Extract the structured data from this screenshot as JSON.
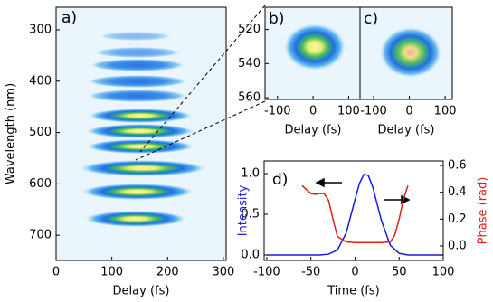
{
  "chart_data": [
    {
      "type": "heatmap",
      "panel_label": "a)",
      "xlabel": "Delay (fs)",
      "ylabel": "Wavelength (nm)",
      "xlim": [
        0,
        305
      ],
      "ylim": [
        256,
        749
      ],
      "y_inverted": true,
      "xticks": [
        0,
        100,
        200,
        300
      ],
      "yticks": [
        300,
        400,
        500,
        600,
        700
      ]
    },
    {
      "type": "heatmap",
      "panel_label": "b)",
      "xlabel": "Delay (fs)",
      "xlim": [
        -135,
        132
      ],
      "ylim": [
        507,
        561
      ],
      "y_inverted": true,
      "xticks": [
        -100,
        0,
        100
      ],
      "yticks": [
        520,
        540,
        560
      ]
    },
    {
      "type": "heatmap",
      "panel_label": "c)",
      "xlabel": "Delay (fs)",
      "xlim": [
        -138,
        120
      ],
      "ylim": [
        507,
        561
      ],
      "y_inverted": true,
      "xticks": [
        -100,
        0,
        100
      ]
    },
    {
      "type": "line",
      "panel_label": "d)",
      "xlabel": "Time (fs)",
      "ylabel": "Intensity",
      "y2label": "Phase (rad)",
      "ylabel_color": "#1a1ad6",
      "y2label_color": "#e0201a",
      "xlim": [
        -103,
        100
      ],
      "ylim": [
        -0.067,
        1.156
      ],
      "y2lim": [
        -0.108,
        0.634
      ],
      "xticks": [
        -100,
        -50,
        0,
        50,
        100
      ],
      "yticks": [
        {
          "value": 0,
          "label": "0.0"
        },
        {
          "value": 0.5,
          "label": "0.5"
        },
        {
          "value": 1,
          "label": "1.0"
        }
      ],
      "y2ticks": [
        {
          "value": 0,
          "label": "0.0"
        },
        {
          "value": 0.2,
          "label": "0.2"
        },
        {
          "value": 0.4,
          "label": "0.4"
        },
        {
          "value": 0.6,
          "label": "0.6"
        }
      ],
      "series": [
        {
          "color": "#1a1ad6",
          "x": [
            -100,
            -60,
            -40,
            -30,
            -20,
            -10,
            0,
            5,
            10,
            15,
            20,
            30,
            40,
            50,
            60,
            100
          ],
          "values": [
            0,
            0,
            0,
            0.01,
            0.06,
            0.27,
            0.68,
            0.88,
            0.99,
            0.98,
            0.84,
            0.42,
            0.12,
            0.02,
            0,
            0
          ]
        },
        {
          "color": "#e0201a",
          "axis": "y2",
          "x": [
            -60,
            -55,
            -50,
            -45,
            -40,
            -35,
            -30,
            -25,
            -20,
            -10,
            0,
            10,
            20,
            30,
            40,
            45,
            50,
            55,
            60
          ],
          "values": [
            0.45,
            0.42,
            0.39,
            0.385,
            0.39,
            0.39,
            0.34,
            0.2,
            0.07,
            0.03,
            0.025,
            0.025,
            0.025,
            0.025,
            0.03,
            0.08,
            0.2,
            0.35,
            0.45
          ]
        }
      ]
    }
  ]
}
